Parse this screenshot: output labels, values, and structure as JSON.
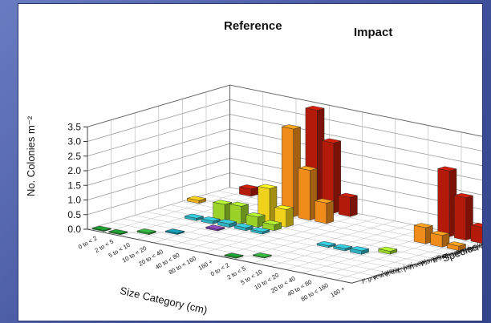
{
  "chart_data": {
    "type": "bar3d",
    "ylabel": "No. Colonies m⁻²",
    "xlabel": "Size Category (cm)",
    "zlabel": "Species",
    "ylim": [
      0,
      3.5
    ],
    "yticks": [
      "0.0",
      "0.5",
      "1.0",
      "1.5",
      "2.0",
      "2.5",
      "3.0",
      "3.5"
    ],
    "panels": [
      "Reference",
      "Impact"
    ],
    "size_categories": [
      "0 to < 2",
      "2 to < 5",
      "5 to < 10",
      "10 to < 20",
      "20 to < 40",
      "40 to < 80",
      "80 to < 160",
      "160 +"
    ],
    "species": [
      "F. granulosa",
      "F. scutaria",
      "P. duerdeni",
      "L. purpurea",
      "P. compressa",
      "P. brighami",
      "P. evermanni",
      "P. eydouxi",
      "P. meandrina",
      "M. patula",
      "M. capitata",
      "P. lobata"
    ],
    "species_colors": [
      "#1a8a2a",
      "#2fa03a",
      "#138ba0",
      "#1e5fb0",
      "#7a3fa0",
      "#2fb0c0",
      "#9ad22a",
      "#f0d21a",
      "#f0b41a",
      "#f08c1a",
      "#e85a14",
      "#b41a0a"
    ],
    "bars": [
      {
        "panel": "Reference",
        "size": "0 to < 2",
        "species": "F. granulosa",
        "value": 0.03
      },
      {
        "panel": "Reference",
        "size": "2 to < 5",
        "species": "F. granulosa",
        "value": 0.03
      },
      {
        "panel": "Reference",
        "size": "5 to < 10",
        "species": "F. scutaria",
        "value": 0.05
      },
      {
        "panel": "Reference",
        "size": "10 to < 20",
        "species": "P. duerdeni",
        "value": 0.04
      },
      {
        "panel": "Reference",
        "size": "20 to < 40",
        "species": "P. compressa",
        "value": 0.05
      },
      {
        "panel": "Reference",
        "size": "5 to < 10",
        "species": "P. brighami",
        "value": 0.08
      },
      {
        "panel": "Reference",
        "size": "10 to < 20",
        "species": "P. brighami",
        "value": 0.1
      },
      {
        "panel": "Reference",
        "size": "20 to < 40",
        "species": "P. brighami",
        "value": 0.12
      },
      {
        "panel": "Reference",
        "size": "40 to < 80",
        "species": "P. brighami",
        "value": 0.1
      },
      {
        "panel": "Reference",
        "size": "80 to < 160",
        "species": "P. brighami",
        "value": 0.08
      },
      {
        "panel": "Reference",
        "size": "0 to < 2",
        "species": "P. meandrina",
        "value": 0.1
      },
      {
        "panel": "Reference",
        "size": "2 to < 5",
        "species": "P. lobata",
        "value": 0.25
      },
      {
        "panel": "Reference",
        "size": "10 to < 20",
        "species": "P. evermanni",
        "value": 0.55
      },
      {
        "panel": "Reference",
        "size": "20 to < 40",
        "species": "P. evermanni",
        "value": 0.6
      },
      {
        "panel": "Reference",
        "size": "40 to < 80",
        "species": "P. evermanni",
        "value": 0.35
      },
      {
        "panel": "Reference",
        "size": "80 to < 160",
        "species": "P. evermanni",
        "value": 0.2
      },
      {
        "panel": "Reference",
        "size": "40 to < 80",
        "species": "P. eydouxi",
        "value": 1.2
      },
      {
        "panel": "Reference",
        "size": "80 to < 160",
        "species": "P. eydouxi",
        "value": 0.6
      },
      {
        "panel": "Reference",
        "size": "40 to < 80",
        "species": "M. patula",
        "value": 3.0
      },
      {
        "panel": "Reference",
        "size": "80 to < 160",
        "species": "M. patula",
        "value": 1.7
      },
      {
        "panel": "Reference",
        "size": "160 +",
        "species": "M. patula",
        "value": 0.7
      },
      {
        "panel": "Reference",
        "size": "40 to < 80",
        "species": "P. lobata",
        "value": 3.4
      },
      {
        "panel": "Reference",
        "size": "80 to < 160",
        "species": "P. lobata",
        "value": 2.4
      },
      {
        "panel": "Reference",
        "size": "160 +",
        "species": "P. lobata",
        "value": 0.65
      },
      {
        "panel": "Impact",
        "size": "5 to < 10",
        "species": "P. brighami",
        "value": 0.06
      },
      {
        "panel": "Impact",
        "size": "10 to < 20",
        "species": "P. brighami",
        "value": 0.08
      },
      {
        "panel": "Impact",
        "size": "20 to < 40",
        "species": "P. brighami",
        "value": 0.12
      },
      {
        "panel": "Impact",
        "size": "40 to < 80",
        "species": "P. evermanni",
        "value": 0.1
      },
      {
        "panel": "Impact",
        "size": "40 to < 80",
        "species": "M. patula",
        "value": 0.55
      },
      {
        "panel": "Impact",
        "size": "80 to < 160",
        "species": "M. patula",
        "value": 0.4
      },
      {
        "panel": "Impact",
        "size": "160 +",
        "species": "M. patula",
        "value": 0.15
      },
      {
        "panel": "Impact",
        "size": "40 to < 80",
        "species": "P. lobata",
        "value": 2.25
      },
      {
        "panel": "Impact",
        "size": "80 to < 160",
        "species": "P. lobata",
        "value": 1.45
      },
      {
        "panel": "Impact",
        "size": "160 +",
        "species": "P. lobata",
        "value": 0.55
      },
      {
        "panel": "Impact",
        "size": "0 to < 2",
        "species": "F. granulosa",
        "value": 0.03
      },
      {
        "panel": "Impact",
        "size": "2 to < 5",
        "species": "F. scutaria",
        "value": 0.03
      }
    ],
    "grid": true
  }
}
